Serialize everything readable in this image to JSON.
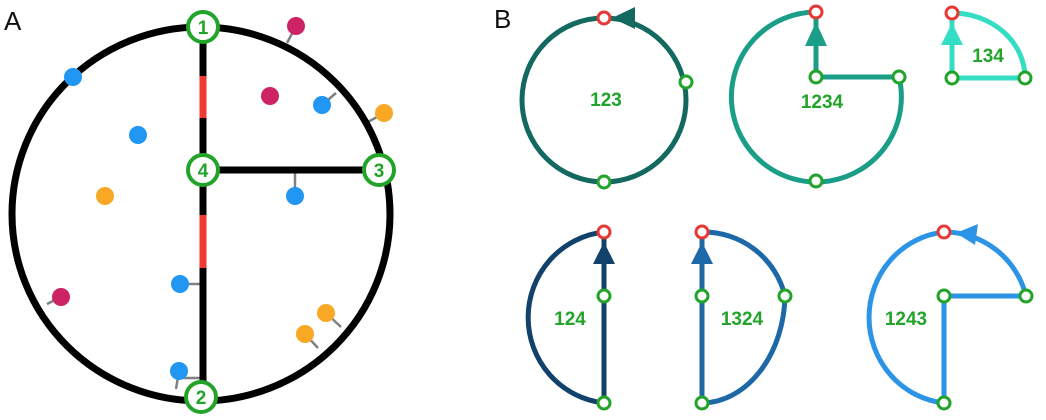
{
  "panels": {
    "a": "A",
    "b": "B"
  },
  "nodes": [
    "1",
    "2",
    "3",
    "4"
  ],
  "cycles": [
    {
      "label": "123",
      "color": "#13685f"
    },
    {
      "label": "1234",
      "color": "#1a9e88"
    },
    {
      "label": "134",
      "color": "#34ddc4"
    },
    {
      "label": "124",
      "color": "#12426c"
    },
    {
      "label": "1324",
      "color": "#1d68a6"
    },
    {
      "label": "1243",
      "color": "#2c94e6"
    }
  ],
  "colors": {
    "track": "#000000",
    "node_outline": "#22a32a",
    "start_node": "#e53935",
    "red_segment": "#ee3a32",
    "dot_magenta": "#cc2366",
    "dot_blue": "#2196f3",
    "dot_orange": "#f9a825",
    "connector": "#808080"
  }
}
